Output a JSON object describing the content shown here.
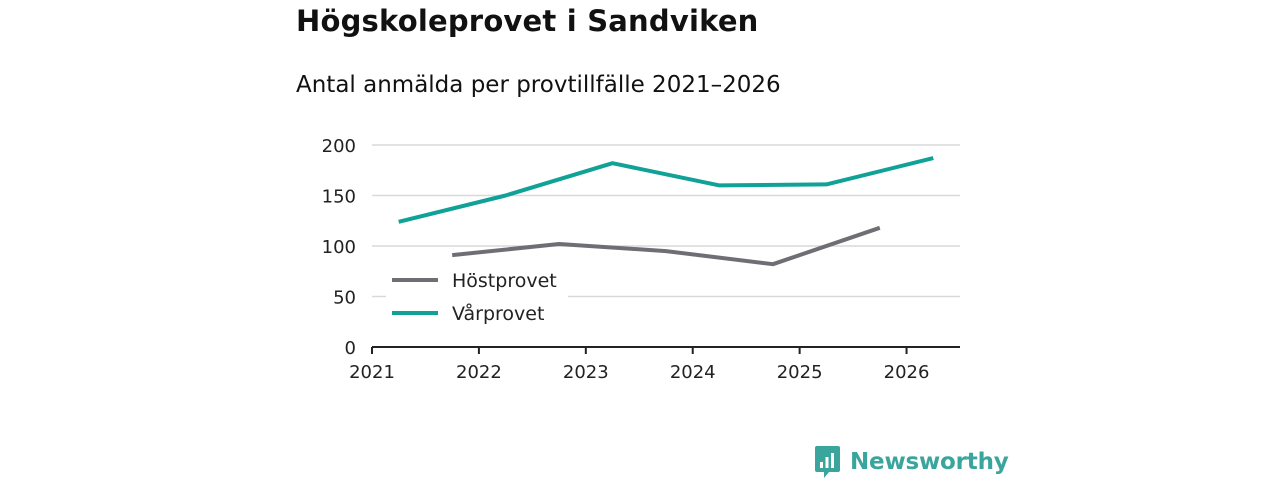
{
  "colors": {
    "brand": "#3aa59c",
    "grid": "#d9d9d9",
    "axis": "#222222"
  },
  "chart_data": {
    "type": "line",
    "title": "Högskoleprovet i Sandviken",
    "subtitle": "Antal anmälda per provtillfälle 2021–2026",
    "xlabel": "",
    "ylabel": "",
    "xlim": [
      2021,
      2026.5
    ],
    "ylim": [
      0,
      200
    ],
    "x_ticks": [
      2021,
      2022,
      2023,
      2024,
      2025,
      2026
    ],
    "x_tick_labels": [
      "2021",
      "2022",
      "2023",
      "2024",
      "2025",
      "2026"
    ],
    "y_ticks": [
      0,
      50,
      100,
      150,
      200
    ],
    "y_tick_labels": [
      "0",
      "50",
      "100",
      "150",
      "200"
    ],
    "grid": true,
    "legend_position": "lower-left",
    "series": [
      {
        "name": "Höstprovet",
        "color": "#6f6e75",
        "x": [
          2021.75,
          2022.75,
          2023.75,
          2024.75,
          2025.75
        ],
        "values": [
          91,
          102,
          95,
          82,
          118
        ]
      },
      {
        "name": "Vårprovet",
        "color": "#10a197",
        "x": [
          2021.25,
          2022.25,
          2023.25,
          2024.25,
          2025.25,
          2026.25
        ],
        "values": [
          124,
          150,
          182,
          160,
          161,
          187
        ]
      }
    ]
  },
  "brand": {
    "name": "Newsworthy",
    "icon": "newsworthy-logo-icon"
  }
}
